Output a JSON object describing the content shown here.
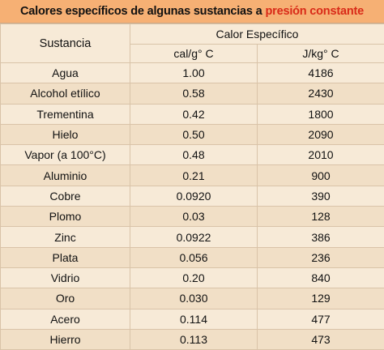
{
  "title": {
    "main": "Calores específicos de algunas sustancias a",
    "highlight": "presión constante",
    "highlight_color": "#d92a18",
    "band_color": "#f6b074"
  },
  "table": {
    "header_substance": "Sustancia",
    "header_group": "Calor Específico",
    "unit_cal": "cal/g° C",
    "unit_j": "J/kg° C",
    "rows": [
      {
        "substance": "Agua",
        "cal": "1.00",
        "j": "4186"
      },
      {
        "substance": "Alcohol etílico",
        "cal": "0.58",
        "j": "2430"
      },
      {
        "substance": "Trementina",
        "cal": "0.42",
        "j": "1800"
      },
      {
        "substance": "Hielo",
        "cal": "0.50",
        "j": "2090"
      },
      {
        "substance": "Vapor (a 100°C)",
        "cal": "0.48",
        "j": "2010"
      },
      {
        "substance": "Aluminio",
        "cal": "0.21",
        "j": "900"
      },
      {
        "substance": "Cobre",
        "cal": "0.0920",
        "j": "390"
      },
      {
        "substance": "Plomo",
        "cal": "0.03",
        "j": "128"
      },
      {
        "substance": "Zinc",
        "cal": "0.0922",
        "j": "386"
      },
      {
        "substance": "Plata",
        "cal": "0.056",
        "j": "236"
      },
      {
        "substance": "Vidrio",
        "cal": "0.20",
        "j": "840"
      },
      {
        "substance": "Oro",
        "cal": "0.030",
        "j": "129"
      },
      {
        "substance": "Acero",
        "cal": "0.114",
        "j": "477"
      },
      {
        "substance": "Hierro",
        "cal": "0.113",
        "j": "473"
      }
    ]
  }
}
